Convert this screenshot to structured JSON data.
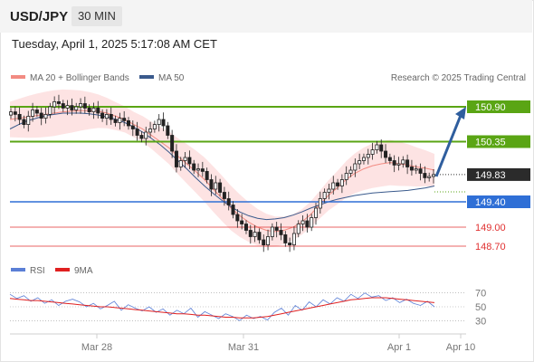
{
  "header": {
    "symbol": "USD/JPY",
    "timeframe": "30 MIN"
  },
  "datetime": "Tuesday, April 1, 2025 5:17:08 AM CET",
  "legend": {
    "ma20": {
      "label": "MA 20 + Bollinger Bands",
      "color": "#f28b82"
    },
    "ma50": {
      "label": "MA 50",
      "color": "#3a5a8c"
    },
    "copyright": "Research © 2025 Trading Central",
    "rsi": {
      "label": "RSI",
      "color": "#5b7fd6"
    },
    "ma9": {
      "label": "9MA",
      "color": "#e02020"
    }
  },
  "levels": [
    {
      "value": "150.90",
      "price": 150.9,
      "style": "green-box"
    },
    {
      "value": "150.35",
      "price": 150.35,
      "style": "green-box"
    },
    {
      "value": "149.83",
      "price": 149.83,
      "style": "current"
    },
    {
      "value": "149.40",
      "price": 149.4,
      "style": "blue-box"
    },
    {
      "value": "149.00",
      "price": 149.0,
      "style": "red-text"
    },
    {
      "value": "148.70",
      "price": 148.7,
      "style": "red-text"
    }
  ],
  "rsi_levels": [
    "70",
    "50",
    "30"
  ],
  "x_ticks": [
    "Mar 28",
    "Mar 31",
    "Apr 1",
    "Apr 10"
  ],
  "colors": {
    "green": "#5aa514",
    "blue": "#2f6fd6",
    "red": "#e03030",
    "band": "#fde0e0",
    "arrow": "#2f5e9e"
  },
  "chart_data": {
    "type": "candlestick",
    "title": "USD/JPY 30 MIN",
    "ylim": [
      148.55,
      151.2
    ],
    "close_path": [
      150.82,
      150.78,
      150.7,
      150.62,
      150.75,
      150.85,
      150.8,
      150.72,
      150.78,
      150.9,
      150.98,
      150.95,
      150.88,
      150.92,
      150.85,
      150.9,
      150.95,
      150.88,
      150.82,
      150.88,
      150.8,
      150.72,
      150.78,
      150.7,
      150.65,
      150.72,
      150.68,
      150.6,
      150.55,
      150.45,
      150.4,
      150.5,
      150.55,
      150.62,
      150.7,
      150.6,
      150.45,
      150.2,
      149.95,
      150.05,
      150.1,
      150.0,
      149.9,
      149.92,
      149.88,
      149.75,
      149.6,
      149.7,
      149.55,
      149.45,
      149.35,
      149.2,
      149.1,
      149.05,
      148.95,
      148.85,
      148.92,
      148.8,
      148.72,
      148.85,
      149.0,
      148.95,
      148.88,
      148.75,
      148.72,
      148.9,
      149.05,
      149.1,
      149.0,
      149.15,
      149.3,
      149.45,
      149.55,
      149.6,
      149.7,
      149.65,
      149.75,
      149.85,
      149.9,
      150.0,
      150.05,
      150.1,
      150.15,
      150.22,
      150.3,
      150.2,
      150.1,
      150.05,
      149.98,
      150.0,
      150.06,
      149.95,
      149.9,
      149.92,
      149.85,
      149.78,
      149.8,
      149.83
    ],
    "ma20": [
      150.7,
      150.72,
      150.74,
      150.76,
      150.78,
      150.8,
      150.82,
      150.83,
      150.84,
      150.84,
      150.83,
      150.8,
      150.75,
      150.7,
      150.62,
      150.55,
      150.45,
      150.35,
      150.25,
      150.12,
      150.0,
      149.88,
      149.75,
      149.6,
      149.45,
      149.3,
      149.18,
      149.08,
      149.0,
      148.95,
      148.93,
      148.95,
      149.0,
      149.08,
      149.2,
      149.35,
      149.5,
      149.62,
      149.75,
      149.85,
      149.92,
      149.97,
      150.0,
      150.02,
      150.0,
      149.98,
      149.95,
      149.93,
      149.9
    ],
    "ma50": [
      150.55,
      150.62,
      150.68,
      150.72,
      150.76,
      150.78,
      150.8,
      150.8,
      150.8,
      150.79,
      150.77,
      150.74,
      150.7,
      150.65,
      150.58,
      150.5,
      150.4,
      150.3,
      150.18,
      150.05,
      149.92,
      149.78,
      149.65,
      149.53,
      149.42,
      149.32,
      149.24,
      149.18,
      149.14,
      149.12,
      149.13,
      149.15,
      149.19,
      149.24,
      149.3,
      149.35,
      149.4,
      149.44,
      149.47,
      149.5,
      149.52,
      149.54,
      149.55,
      149.56,
      149.57,
      149.58,
      149.6,
      149.62,
      149.65
    ],
    "forecast": {
      "from": 149.83,
      "to": 150.9
    },
    "rsi": {
      "levels": [
        70,
        50,
        30
      ],
      "ylim": [
        20,
        80
      ],
      "rsi_values": [
        68,
        62,
        66,
        58,
        63,
        55,
        60,
        52,
        58,
        61,
        57,
        50,
        55,
        47,
        52,
        58,
        45,
        53,
        48,
        44,
        50,
        42,
        47,
        38,
        45,
        40,
        48,
        35,
        43,
        38,
        33,
        40,
        36,
        30,
        38,
        33,
        36,
        31,
        42,
        48,
        38,
        52,
        45,
        57,
        50,
        60,
        54,
        63,
        58,
        68,
        62,
        70,
        64,
        66,
        59,
        63,
        56,
        61,
        55,
        52,
        58,
        50
      ],
      "ma9_values": [
        62,
        61,
        60,
        59,
        59,
        58,
        57,
        56,
        55,
        54,
        53,
        52,
        51,
        50,
        50,
        49,
        48,
        47,
        46,
        45,
        44,
        43,
        42,
        41,
        40,
        40,
        39,
        38,
        38,
        37,
        36,
        35,
        35,
        34,
        34,
        34,
        35,
        36,
        38,
        40,
        42,
        44,
        46,
        48,
        50,
        52,
        54,
        56,
        58,
        60,
        61,
        62,
        63,
        63,
        63,
        62,
        61,
        60,
        59,
        58,
        57,
        56
      ]
    }
  }
}
